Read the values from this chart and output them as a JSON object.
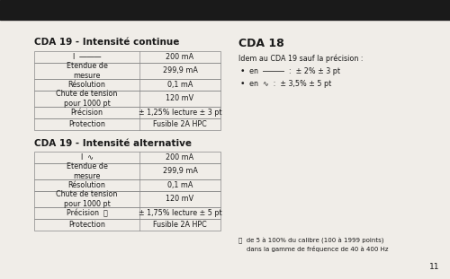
{
  "bg_color": "#f0ede8",
  "top_bar_color": "#1a1a1a",
  "title1": "CDA 19 - Intensité continue",
  "title2": "CDA 19 - Intensité alternative",
  "title3": "CDA 18",
  "table1_rows": [
    [
      "I  ―――",
      "200 mA"
    ],
    [
      "Etendue de\nmesure",
      "299,9 mA"
    ],
    [
      "Résolution",
      "0,1 mA"
    ],
    [
      "Chute de tension\npour 1000 pt",
      "120 mV"
    ],
    [
      "Précision",
      "± 1,25% lecture ± 3 pt"
    ],
    [
      "Protection",
      "Fusible 2A HPC"
    ]
  ],
  "table2_rows": [
    [
      "I  ∿",
      "200 mA"
    ],
    [
      "Etendue de\nmesure",
      "299,9 mA"
    ],
    [
      "Résolution",
      "0,1 mA"
    ],
    [
      "Chute de tension\npour 1000 pt",
      "120 mV"
    ],
    [
      "Précision  ⓘ",
      "± 1,75% lecture ± 5 pt"
    ],
    [
      "Protection",
      "Fusible 2A HPC"
    ]
  ],
  "cda18_subtitle": "Idem au CDA 19 sauf la précision :",
  "cda18_bullets": [
    "en  ―――  :  ± 2% ± 3 pt",
    "en  ∿  :  ± 3,5% ± 5 pt"
  ],
  "footnote_line1": "ⓘ  de 5 à 100% du calibre (100 à 1999 points)",
  "footnote_line2": "    dans la gamme de fréquence de 40 à 400 Hz",
  "page_number": "11",
  "text_color": "#1a1a1a",
  "table_line_color": "#888888",
  "title_fontsize": 7.5,
  "body_fontsize": 5.8,
  "small_fontsize": 5.0,
  "page_fontsize": 6.5
}
